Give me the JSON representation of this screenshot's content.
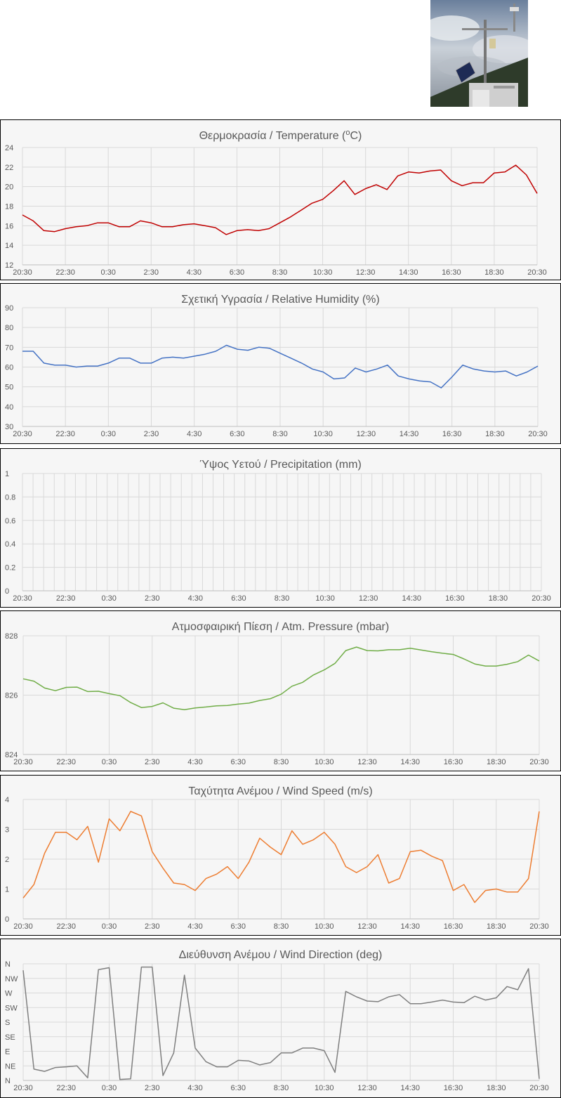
{
  "chart_data": [
    {
      "type": "line",
      "title": "Θερμοκρασία / Temperature (",
      "title_sup": "o",
      "title_end": "C)",
      "color": "#c00000",
      "ylim": [
        12,
        24
      ],
      "yticks": [
        "12",
        "14",
        "16",
        "18",
        "20",
        "22",
        "24"
      ],
      "xticks": [
        "20:30",
        "22:30",
        "0:30",
        "2:30",
        "4:30",
        "6:30",
        "8:30",
        "10:30",
        "12:30",
        "14:30",
        "16:30",
        "18:30",
        "20:30"
      ],
      "grid": true,
      "values": [
        17.1,
        16.5,
        15.5,
        15.4,
        15.7,
        15.9,
        16.0,
        16.3,
        16.3,
        15.9,
        15.9,
        16.5,
        16.3,
        15.9,
        15.9,
        16.1,
        16.2,
        16.0,
        15.8,
        15.1,
        15.5,
        15.6,
        15.5,
        15.7,
        16.3,
        16.9,
        17.6,
        18.3,
        18.7,
        19.6,
        20.6,
        19.2,
        19.8,
        20.2,
        19.7,
        21.1,
        21.5,
        21.4,
        21.6,
        21.7,
        20.6,
        20.1,
        20.4,
        20.4,
        21.4,
        21.5,
        22.2,
        21.2,
        19.3
      ]
    },
    {
      "type": "line",
      "title": "Σχετική Υγρασία / Relative Humidity (%)",
      "color": "#4472c4",
      "ylim": [
        30,
        90
      ],
      "yticks": [
        "30",
        "40",
        "50",
        "60",
        "70",
        "80",
        "90"
      ],
      "xticks": [
        "20:30",
        "22:30",
        "0:30",
        "2:30",
        "4:30",
        "6:30",
        "8:30",
        "10:30",
        "12:30",
        "14:30",
        "16:30",
        "18:30",
        "20:30"
      ],
      "grid": true,
      "values": [
        68,
        68,
        62,
        61,
        61,
        60,
        60.5,
        60.5,
        62,
        64.5,
        64.5,
        62,
        62,
        64.5,
        65,
        64.5,
        65.5,
        66.5,
        68,
        71,
        69,
        68.5,
        70,
        69.5,
        67,
        64.5,
        62,
        59,
        57.5,
        54,
        54.5,
        59.5,
        57.5,
        59,
        61,
        55.5,
        54,
        53,
        52.5,
        49.5,
        55,
        61,
        59,
        58,
        57.5,
        58,
        55.5,
        57.5,
        60.5
      ]
    },
    {
      "type": "bar",
      "title": "Ύψος Υετού / Precipitation (mm)",
      "color": "#7f7f7f",
      "ylim": [
        0,
        1
      ],
      "yticks": [
        "0",
        "0.2",
        "0.4",
        "0.6",
        "0.8",
        "1"
      ],
      "xticks": [
        "20:30",
        "22:30",
        "0:30",
        "2:30",
        "4:30",
        "6:30",
        "8:30",
        "10:30",
        "12:30",
        "14:30",
        "16:30",
        "18:30",
        "20:30"
      ],
      "grid": true,
      "category_count": 49,
      "values": [
        0,
        0,
        0,
        0,
        0,
        0,
        0,
        0,
        0,
        0,
        0,
        0,
        0,
        0,
        0,
        0,
        0,
        0,
        0,
        0,
        0,
        0,
        0,
        0,
        0,
        0,
        0,
        0,
        0,
        0,
        0,
        0,
        0,
        0,
        0,
        0,
        0,
        0,
        0,
        0,
        0,
        0,
        0,
        0,
        0,
        0,
        0,
        0,
        0
      ]
    },
    {
      "type": "line",
      "title": "Ατμοσφαιρική Πίεση / Atm. Pressure (mbar)",
      "color": "#70ad47",
      "ylim": [
        824,
        828
      ],
      "yticks": [
        "824",
        "826",
        "828"
      ],
      "xticks": [
        "20:30",
        "22:30",
        "0:30",
        "2:30",
        "4:30",
        "6:30",
        "8:30",
        "10:30",
        "12:30",
        "14:30",
        "16:30",
        "18:30",
        "20:30"
      ],
      "grid": true,
      "values": [
        826.55,
        826.47,
        826.24,
        826.15,
        826.26,
        826.27,
        826.12,
        826.13,
        826.05,
        825.98,
        825.75,
        825.58,
        825.62,
        825.74,
        825.56,
        825.51,
        825.57,
        825.6,
        825.64,
        825.65,
        825.7,
        825.73,
        825.82,
        825.88,
        826.03,
        826.3,
        826.43,
        826.68,
        826.85,
        827.07,
        827.5,
        827.62,
        827.5,
        827.49,
        827.53,
        827.53,
        827.58,
        827.52,
        827.46,
        827.41,
        827.37,
        827.22,
        827.05,
        826.98,
        826.98,
        827.04,
        827.13,
        827.35,
        827.15
      ]
    },
    {
      "type": "line",
      "title": "Ταχύτητα Ανέμου / Wind Speed (m/s)",
      "color": "#ed7d31",
      "ylim": [
        0,
        4
      ],
      "yticks": [
        "0",
        "1",
        "2",
        "3",
        "4"
      ],
      "xticks": [
        "20:30",
        "22:30",
        "0:30",
        "2:30",
        "4:30",
        "6:30",
        "8:30",
        "10:30",
        "12:30",
        "14:30",
        "16:30",
        "18:30",
        "20:30"
      ],
      "grid": true,
      "values": [
        0.7,
        1.15,
        2.2,
        2.9,
        2.9,
        2.65,
        3.1,
        1.9,
        3.35,
        2.95,
        3.6,
        3.45,
        2.25,
        1.7,
        1.2,
        1.15,
        0.95,
        1.35,
        1.5,
        1.75,
        1.35,
        1.9,
        2.7,
        2.4,
        2.15,
        2.95,
        2.5,
        2.65,
        2.9,
        2.5,
        1.75,
        1.55,
        1.75,
        2.15,
        1.2,
        1.35,
        2.25,
        2.3,
        2.1,
        1.95,
        0.95,
        1.15,
        0.55,
        0.95,
        1.0,
        0.9,
        0.9,
        1.35,
        3.6
      ]
    },
    {
      "type": "line",
      "title": "Διεύθυνση Ανέμου / Wind Direction (deg)",
      "color": "#7f7f7f",
      "ylim": [
        0,
        360
      ],
      "ytick_values": [
        0,
        45,
        90,
        135,
        180,
        225,
        270,
        315,
        360
      ],
      "yticks": [
        "N",
        "NE",
        "E",
        "SE",
        "S",
        "SW",
        "W",
        "NW",
        "N"
      ],
      "xticks": [
        "20:30",
        "22:30",
        "0:30",
        "2:30",
        "4:30",
        "6:30",
        "8:30",
        "10:30",
        "12:30",
        "14:30",
        "16:30",
        "18:30",
        "20:30"
      ],
      "grid": true,
      "values": [
        340,
        35,
        28,
        40,
        42,
        45,
        8,
        342,
        348,
        3,
        5,
        350,
        350,
        15,
        85,
        325,
        100,
        58,
        42,
        42,
        62,
        60,
        48,
        55,
        85,
        85,
        100,
        100,
        92,
        25,
        275,
        258,
        245,
        243,
        258,
        265,
        237,
        237,
        242,
        248,
        242,
        240,
        260,
        248,
        255,
        290,
        280,
        345,
        5
      ]
    }
  ]
}
